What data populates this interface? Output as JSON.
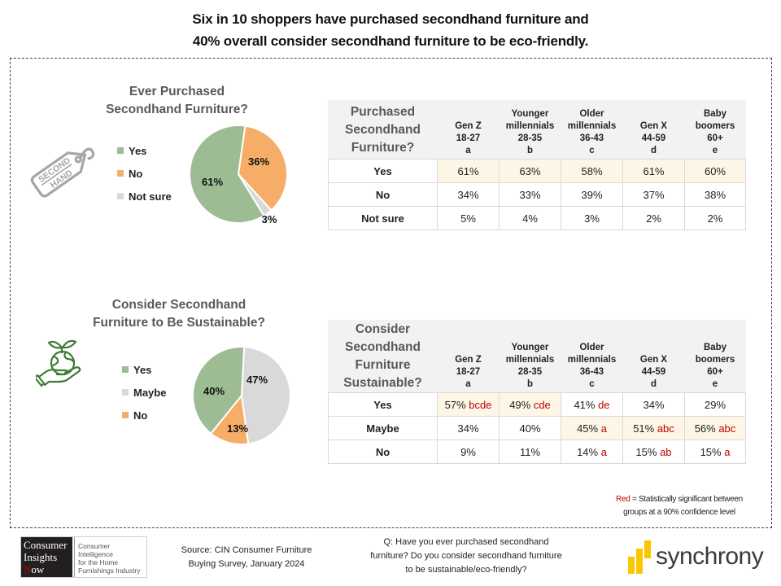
{
  "title": {
    "line1": "Six in 10 shoppers have purchased secondhand furniture and",
    "line2": "40% overall consider secondhand furniture to be eco-friendly."
  },
  "colors": {
    "yes": "#9dbc94",
    "no": "#f6ad67",
    "not_sure": "#d9d9d9",
    "significance_red": "#c00000",
    "highlight_cell": "#fdf6e6",
    "header_gray": "#f2f2f2",
    "brand_yellow": "#fbc600",
    "icon_green": "#3f7a35",
    "icon_gray": "#a6a6a6"
  },
  "chart_data": [
    {
      "type": "pie",
      "title": "Ever Purchased Secondhand Furniture?",
      "title_lines": [
        "Ever Purchased",
        "Secondhand Furniture?"
      ],
      "legend_position": "left",
      "slices": [
        {
          "label": "Yes",
          "value": 61,
          "display": "61%",
          "color": "#9dbc94"
        },
        {
          "label": "No",
          "value": 36,
          "display": "36%",
          "color": "#f6ad67"
        },
        {
          "label": "Not sure",
          "value": 3,
          "display": "3%",
          "color": "#d9d9d9"
        }
      ],
      "draw_order_clockwise_from_top": [
        "No",
        "Not sure",
        "Yes"
      ]
    },
    {
      "type": "pie",
      "title": "Consider Secondhand Furniture to Be Sustainable?",
      "title_lines": [
        "Consider Secondhand",
        "Furniture to Be Sustainable?"
      ],
      "legend_position": "left",
      "slices": [
        {
          "label": "Yes",
          "value": 40,
          "display": "40%",
          "color": "#9dbc94"
        },
        {
          "label": "Maybe",
          "value": 47,
          "display": "47%",
          "color": "#d9d9d9"
        },
        {
          "label": "No",
          "value": 13,
          "display": "13%",
          "color": "#f6ad67"
        }
      ],
      "draw_order_clockwise_from_top": [
        "Maybe",
        "No",
        "Yes"
      ]
    },
    {
      "type": "table",
      "title": "Purchased Secondhand Furniture?",
      "title_lines": [
        "Purchased",
        "Secondhand",
        "Furniture?"
      ],
      "columns": [
        {
          "lines": [
            "Gen Z",
            "18-27",
            "a"
          ]
        },
        {
          "lines": [
            "Younger",
            "millennials",
            "28-35",
            "b"
          ]
        },
        {
          "lines": [
            "Older",
            "millennials",
            "36-43",
            "c"
          ]
        },
        {
          "lines": [
            "Gen X",
            "44-59",
            "d"
          ]
        },
        {
          "lines": [
            "Baby",
            "boomers",
            "60+",
            "e"
          ]
        }
      ],
      "rows": [
        {
          "label": "Yes",
          "cells": [
            {
              "value": "61%",
              "sig": "",
              "highlight": true
            },
            {
              "value": "63%",
              "sig": "",
              "highlight": true
            },
            {
              "value": "58%",
              "sig": "",
              "highlight": true
            },
            {
              "value": "61%",
              "sig": "",
              "highlight": true
            },
            {
              "value": "60%",
              "sig": "",
              "highlight": true
            }
          ]
        },
        {
          "label": "No",
          "cells": [
            {
              "value": "34%",
              "sig": "",
              "highlight": false
            },
            {
              "value": "33%",
              "sig": "",
              "highlight": false
            },
            {
              "value": "39%",
              "sig": "",
              "highlight": false
            },
            {
              "value": "37%",
              "sig": "",
              "highlight": false
            },
            {
              "value": "38%",
              "sig": "",
              "highlight": false
            }
          ]
        },
        {
          "label": "Not sure",
          "cells": [
            {
              "value": "5%",
              "sig": "",
              "highlight": false
            },
            {
              "value": "4%",
              "sig": "",
              "highlight": false
            },
            {
              "value": "3%",
              "sig": "",
              "highlight": false
            },
            {
              "value": "2%",
              "sig": "",
              "highlight": false
            },
            {
              "value": "2%",
              "sig": "",
              "highlight": false
            }
          ]
        }
      ]
    },
    {
      "type": "table",
      "title": "Consider Secondhand Furniture Sustainable?",
      "title_lines": [
        "Consider",
        "Secondhand",
        "Furniture",
        "Sustainable?"
      ],
      "columns": [
        {
          "lines": [
            "Gen Z",
            "18-27",
            "a"
          ]
        },
        {
          "lines": [
            "Younger",
            "millennials",
            "28-35",
            "b"
          ]
        },
        {
          "lines": [
            "Older",
            "millennials",
            "36-43",
            "c"
          ]
        },
        {
          "lines": [
            "Gen X",
            "44-59",
            "d"
          ]
        },
        {
          "lines": [
            "Baby",
            "boomers",
            "60+",
            "e"
          ]
        }
      ],
      "rows": [
        {
          "label": "Yes",
          "cells": [
            {
              "value": "57%",
              "sig": "bcde",
              "highlight": true
            },
            {
              "value": "49%",
              "sig": "cde",
              "highlight": true
            },
            {
              "value": "41%",
              "sig": "de",
              "highlight": false
            },
            {
              "value": "34%",
              "sig": "",
              "highlight": false
            },
            {
              "value": "29%",
              "sig": "",
              "highlight": false
            }
          ]
        },
        {
          "label": "Maybe",
          "cells": [
            {
              "value": "34%",
              "sig": "",
              "highlight": false
            },
            {
              "value": "40%",
              "sig": "",
              "highlight": false
            },
            {
              "value": "45%",
              "sig": "a",
              "highlight": true
            },
            {
              "value": "51%",
              "sig": "abc",
              "highlight": true
            },
            {
              "value": "56%",
              "sig": "abc",
              "highlight": true
            }
          ]
        },
        {
          "label": "No",
          "cells": [
            {
              "value": "9%",
              "sig": "",
              "highlight": false
            },
            {
              "value": "11%",
              "sig": "",
              "highlight": false
            },
            {
              "value": "14%",
              "sig": "a",
              "highlight": false
            },
            {
              "value": "15%",
              "sig": "ab",
              "highlight": false
            },
            {
              "value": "15%",
              "sig": "a",
              "highlight": false
            }
          ]
        }
      ]
    }
  ],
  "icons": {
    "section1": "second-hand-tag-icon",
    "section1_tag_text": [
      "SECOND",
      "HAND"
    ],
    "section2": "hand-holding-globe-sprout-icon"
  },
  "note": {
    "red_word": "Red",
    "rest_line1": " = Statistically significant between",
    "line2": "groups at a 90% confidence level"
  },
  "footer": {
    "cin_logo": {
      "dark_lines": [
        "Consumer",
        "Insights",
        "Now"
      ],
      "light_lines": [
        "Consumer Intelligence",
        "for the Home",
        "Furnishings Industry"
      ]
    },
    "source_lines": [
      "Source: CIN Consumer Furniture",
      "Buying Survey, January 2024"
    ],
    "question_lines": [
      "Q: Have you ever purchased secondhand",
      "furniture? Do you consider secondhand furniture",
      "to be sustainable/eco-friendly?"
    ],
    "brand": "synchrony"
  }
}
